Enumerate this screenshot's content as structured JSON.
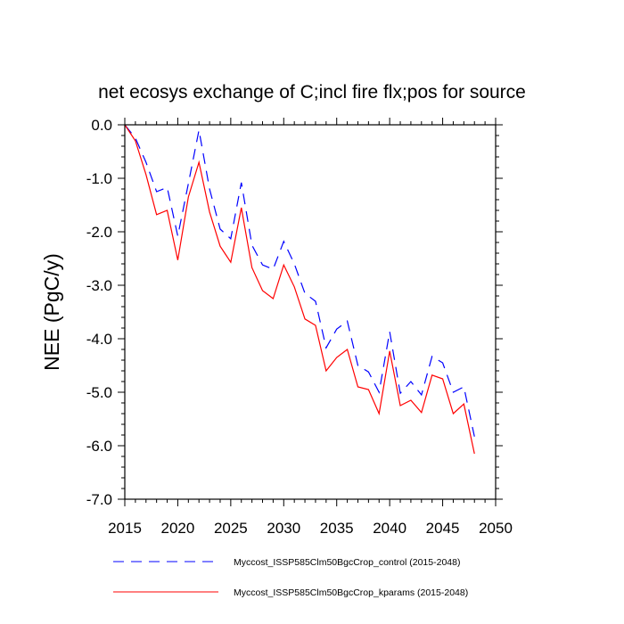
{
  "chart_data": {
    "type": "line",
    "title": "net ecosys exchange of C;incl fire flx;pos for source",
    "xlabel": "",
    "ylabel": "NEE  (PgC/y)",
    "xlim": [
      2015,
      2050
    ],
    "ylim": [
      -7.0,
      0.0
    ],
    "xticks": [
      "2015",
      "2020",
      "2025",
      "2030",
      "2035",
      "2040",
      "2045",
      "2050"
    ],
    "yticks": [
      "0.0",
      "-1.0",
      "-2.0",
      "-3.0",
      "-4.0",
      "-5.0",
      "-6.0",
      "-7.0"
    ],
    "legend_placement": "bottom",
    "x": [
      2015,
      2016,
      2017,
      2018,
      2019,
      2020,
      2021,
      2022,
      2023,
      2024,
      2025,
      2026,
      2027,
      2028,
      2029,
      2030,
      2031,
      2032,
      2033,
      2034,
      2035,
      2036,
      2037,
      2038,
      2039,
      2040,
      2041,
      2042,
      2043,
      2044,
      2045,
      2046,
      2047,
      2048
    ],
    "series": [
      {
        "name": "Myccost_ISSP585Clm50BgcCrop_control (2015-2048)",
        "color": "#0000ff",
        "dash": true,
        "values": [
          0,
          -0.25,
          -0.7,
          -1.25,
          -1.17,
          -2.08,
          -1.1,
          -0.1,
          -1.2,
          -1.95,
          -2.13,
          -1.08,
          -2.25,
          -2.62,
          -2.7,
          -2.18,
          -2.6,
          -3.15,
          -3.3,
          -4.17,
          -3.82,
          -3.67,
          -4.5,
          -4.62,
          -5.0,
          -3.87,
          -5.02,
          -4.8,
          -5.05,
          -4.33,
          -4.45,
          -5.0,
          -4.9,
          -5.83
        ]
      },
      {
        "name": "Myccost_ISSP585Clm50BgcCrop_kparams (2015-2048)",
        "color": "#ff0000",
        "dash": false,
        "values": [
          0,
          -0.3,
          -0.93,
          -1.68,
          -1.6,
          -2.53,
          -1.35,
          -0.7,
          -1.63,
          -2.27,
          -2.57,
          -1.55,
          -2.67,
          -3.1,
          -3.25,
          -2.62,
          -3.03,
          -3.63,
          -3.75,
          -4.6,
          -4.35,
          -4.2,
          -4.9,
          -4.95,
          -5.4,
          -4.23,
          -5.25,
          -5.15,
          -5.38,
          -4.68,
          -4.75,
          -5.4,
          -5.22,
          -6.15
        ]
      }
    ]
  }
}
